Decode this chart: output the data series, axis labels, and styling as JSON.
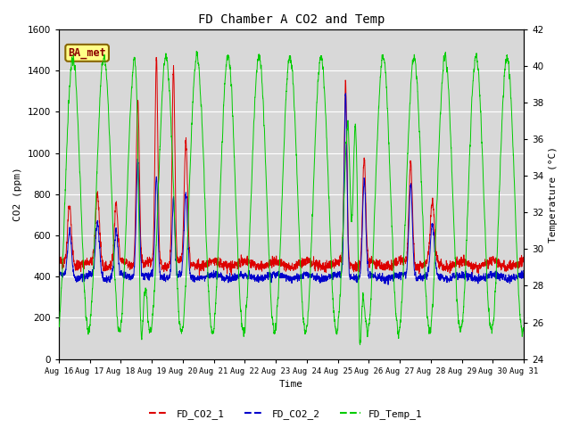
{
  "title": "FD Chamber A CO2 and Temp",
  "xlabel": "Time",
  "ylabel_left": "CO2 (ppm)",
  "ylabel_right": "Temperature (°C)",
  "co2_ylim": [
    0,
    1600
  ],
  "temp_ylim": [
    24,
    42
  ],
  "co2_yticks": [
    0,
    200,
    400,
    600,
    800,
    1000,
    1200,
    1400,
    1600
  ],
  "temp_yticks": [
    24,
    26,
    28,
    30,
    32,
    34,
    36,
    38,
    40,
    42
  ],
  "xtick_labels": [
    "Aug 16",
    "Aug 17",
    "Aug 18",
    "Aug 19",
    "Aug 20",
    "Aug 21",
    "Aug 22",
    "Aug 23",
    "Aug 24",
    "Aug 25",
    "Aug 26",
    "Aug 27",
    "Aug 28",
    "Aug 29",
    "Aug 30",
    "Aug 31"
  ],
  "color_co2_1": "#dd0000",
  "color_co2_2": "#0000cc",
  "color_temp": "#00cc00",
  "legend_labels": [
    "FD_CO2_1",
    "FD_CO2_2",
    "FD_Temp_1"
  ],
  "annotation_text": "BA_met",
  "bg_color": "#d8d8d8",
  "font_family": "monospace",
  "n_days": 15,
  "linewidth": 0.7
}
